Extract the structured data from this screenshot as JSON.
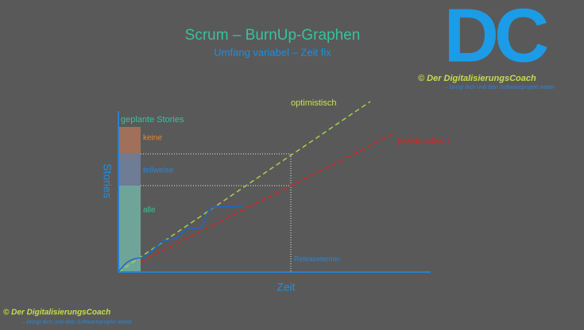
{
  "header": {
    "title": "Scrum – BurnUp-Graphen",
    "subtitle": "Umfang variabel – Zeit fix"
  },
  "logo": {
    "mark": "DC",
    "brand": "© Der DigitalisierungsCoach",
    "tagline": "– bringt dich und dein Softwareprojekt weiter"
  },
  "diagram": {
    "y_axis": "Stories",
    "x_axis": "Zeit",
    "bar_title": "geplante Stories",
    "segments": [
      "keine",
      "teilweise",
      "alle"
    ],
    "lines": [
      "optimistisch",
      "pessimistisch"
    ],
    "release": "Releasetermin"
  },
  "footer": {
    "brand": "© Der DigitalisierungsCoach",
    "tagline": "– bringt dich und dein Softwareprojekt weiter"
  }
}
